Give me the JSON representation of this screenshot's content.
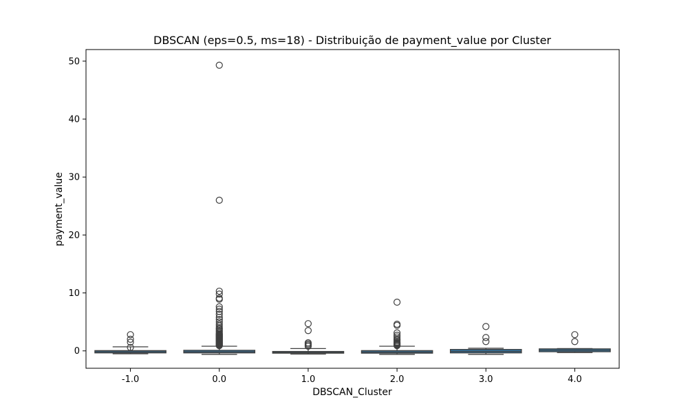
{
  "chart_data": {
    "type": "boxplot",
    "title": "DBSCAN (eps=0.5, ms=18)  - Distribuição de payment_value por Cluster",
    "xlabel": "DBSCAN_Cluster",
    "ylabel": "payment_value",
    "ylim": [
      -3,
      52
    ],
    "yticks": [
      0,
      10,
      20,
      30,
      40,
      50
    ],
    "grid": false,
    "box_color": "#3274a1",
    "categories": [
      "-1.0",
      "0.0",
      "1.0",
      "2.0",
      "3.0",
      "4.0"
    ],
    "boxes": [
      {
        "category": "-1.0",
        "whisker_low": -0.5,
        "q1": -0.35,
        "median": -0.15,
        "q3": 0.05,
        "whisker_high": 0.7,
        "outliers": [
          0.6,
          1.5,
          2.0,
          2.8
        ]
      },
      {
        "category": "0.0",
        "whisker_low": -0.6,
        "q1": -0.35,
        "median": -0.15,
        "q3": 0.1,
        "whisker_high": 0.8,
        "outliers": [
          0.9,
          1.0,
          1.1,
          1.2,
          1.3,
          1.4,
          1.5,
          1.6,
          1.7,
          1.8,
          1.9,
          2.0,
          2.1,
          2.2,
          2.3,
          2.4,
          2.5,
          2.6,
          2.7,
          2.8,
          2.9,
          3.0,
          3.2,
          3.4,
          3.6,
          3.8,
          4.0,
          4.3,
          4.6,
          5.0,
          5.4,
          5.8,
          6.3,
          6.8,
          7.2,
          7.6,
          8.9,
          9.1,
          9.8,
          10.3,
          26.0,
          49.3
        ]
      },
      {
        "category": "1.0",
        "whisker_low": -0.55,
        "q1": -0.4,
        "median": -0.25,
        "q3": -0.1,
        "whisker_high": 0.4,
        "outliers": [
          0.8,
          1.0,
          1.2,
          1.4,
          3.5,
          4.7
        ]
      },
      {
        "category": "2.0",
        "whisker_low": -0.6,
        "q1": -0.4,
        "median": -0.2,
        "q3": 0.05,
        "whisker_high": 0.8,
        "outliers": [
          0.9,
          1.0,
          1.1,
          1.2,
          1.3,
          1.4,
          1.5,
          1.7,
          1.9,
          2.1,
          2.4,
          2.7,
          3.1,
          4.4,
          4.6,
          8.4
        ]
      },
      {
        "category": "3.0",
        "whisker_low": -0.6,
        "q1": -0.35,
        "median": -0.1,
        "q3": 0.25,
        "whisker_high": 0.45,
        "outliers": [
          1.6,
          2.3,
          4.2
        ]
      },
      {
        "category": "4.0",
        "whisker_low": -0.3,
        "q1": -0.15,
        "median": 0.1,
        "q3": 0.35,
        "whisker_high": 0.4,
        "outliers": [
          1.6,
          2.8
        ]
      }
    ]
  }
}
